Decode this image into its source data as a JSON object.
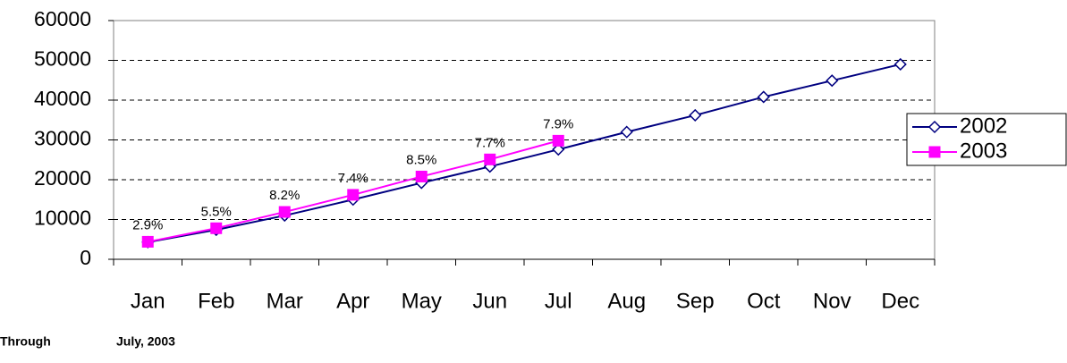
{
  "chart_data": {
    "type": "line",
    "categories": [
      "Jan",
      "Feb",
      "Mar",
      "Apr",
      "May",
      "Jun",
      "Jul",
      "Aug",
      "Sep",
      "Oct",
      "Nov",
      "Dec"
    ],
    "series": [
      {
        "name": "2002",
        "color": "#000080",
        "marker": "diamond",
        "values": [
          4300,
          7400,
          11000,
          15000,
          19200,
          23300,
          27600,
          32000,
          36200,
          40800,
          44900,
          49000
        ]
      },
      {
        "name": "2003",
        "color": "#ff00ff",
        "marker": "square",
        "values": [
          4400,
          7800,
          11900,
          16200,
          20800,
          25100,
          29800,
          null,
          null,
          null,
          null,
          null
        ],
        "data_labels": [
          "2.9%",
          "5.5%",
          "8.2%",
          "7.4%",
          "8.5%",
          "7.7%",
          "7.9%",
          null,
          null,
          null,
          null,
          null
        ]
      }
    ],
    "ylim": [
      0,
      60000
    ],
    "yticks": [
      0,
      10000,
      20000,
      30000,
      40000,
      50000,
      60000
    ],
    "grid": true,
    "legend": "right",
    "footnote": [
      "Through",
      "July, 2003"
    ]
  }
}
